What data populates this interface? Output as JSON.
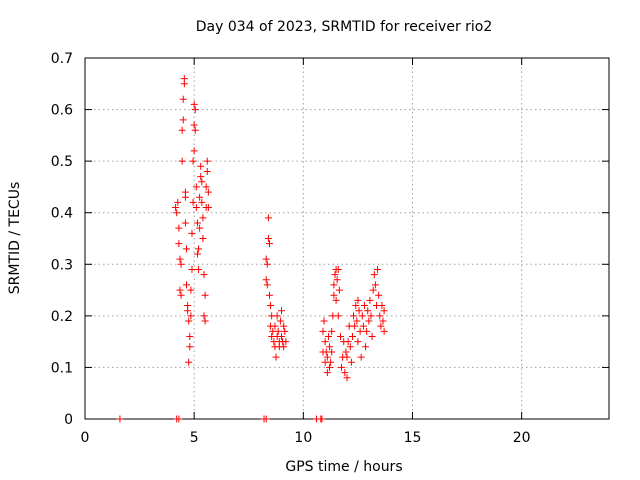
{
  "chart_data": {
    "type": "scatter",
    "title": "Day 034 of 2023, SRMTID for receiver rio2",
    "xlabel": "GPS time / hours",
    "ylabel": "SRMTID / TECUs",
    "xlim": [
      0,
      24
    ],
    "ylim": [
      0,
      0.7
    ],
    "x_ticks": [
      0,
      5,
      10,
      15,
      20
    ],
    "y_ticks": [
      0,
      0.1,
      0.2,
      0.3,
      0.4,
      0.5,
      0.6,
      0.7
    ],
    "x_tick_labels": [
      "0",
      "5",
      "10",
      "15",
      "20"
    ],
    "y_tick_labels": [
      "0",
      "0.1",
      "0.2",
      "0.3",
      "0.4",
      "0.5",
      "0.6",
      "0.7"
    ],
    "grid": true,
    "marker": "plus",
    "series": [
      {
        "name": "SRMTID",
        "color": "#ff0000",
        "points": [
          [
            1.6,
            0.0
          ],
          [
            4.2,
            0.0
          ],
          [
            4.3,
            0.0
          ],
          [
            8.2,
            0.0
          ],
          [
            8.3,
            0.0
          ],
          [
            10.6,
            0.0
          ],
          [
            10.8,
            0.0
          ],
          [
            10.85,
            0.0
          ],
          [
            4.15,
            0.41
          ],
          [
            4.2,
            0.4
          ],
          [
            4.25,
            0.42
          ],
          [
            4.3,
            0.37
          ],
          [
            4.3,
            0.34
          ],
          [
            4.35,
            0.31
          ],
          [
            4.35,
            0.25
          ],
          [
            4.4,
            0.24
          ],
          [
            4.4,
            0.3
          ],
          [
            4.45,
            0.5
          ],
          [
            4.45,
            0.56
          ],
          [
            4.5,
            0.58
          ],
          [
            4.5,
            0.62
          ],
          [
            4.55,
            0.65
          ],
          [
            4.55,
            0.66
          ],
          [
            4.6,
            0.44
          ],
          [
            4.6,
            0.43
          ],
          [
            4.6,
            0.38
          ],
          [
            4.65,
            0.33
          ],
          [
            4.65,
            0.26
          ],
          [
            4.7,
            0.22
          ],
          [
            4.7,
            0.21
          ],
          [
            4.75,
            0.19
          ],
          [
            4.75,
            0.11
          ],
          [
            4.8,
            0.14
          ],
          [
            4.8,
            0.16
          ],
          [
            4.85,
            0.2
          ],
          [
            4.85,
            0.25
          ],
          [
            4.9,
            0.29
          ],
          [
            4.9,
            0.36
          ],
          [
            4.95,
            0.42
          ],
          [
            4.95,
            0.5
          ],
          [
            5.0,
            0.52
          ],
          [
            5.0,
            0.57
          ],
          [
            5.0,
            0.61
          ],
          [
            5.05,
            0.6
          ],
          [
            5.05,
            0.56
          ],
          [
            5.1,
            0.45
          ],
          [
            5.1,
            0.41
          ],
          [
            5.15,
            0.38
          ],
          [
            5.15,
            0.32
          ],
          [
            5.2,
            0.29
          ],
          [
            5.2,
            0.33
          ],
          [
            5.25,
            0.37
          ],
          [
            5.25,
            0.43
          ],
          [
            5.3,
            0.47
          ],
          [
            5.3,
            0.49
          ],
          [
            5.35,
            0.46
          ],
          [
            5.35,
            0.42
          ],
          [
            5.4,
            0.39
          ],
          [
            5.4,
            0.35
          ],
          [
            5.45,
            0.28
          ],
          [
            5.45,
            0.2
          ],
          [
            5.5,
            0.19
          ],
          [
            5.5,
            0.24
          ],
          [
            5.55,
            0.41
          ],
          [
            5.55,
            0.45
          ],
          [
            5.6,
            0.48
          ],
          [
            5.6,
            0.5
          ],
          [
            5.65,
            0.44
          ],
          [
            5.65,
            0.41
          ],
          [
            8.3,
            0.31
          ],
          [
            8.3,
            0.27
          ],
          [
            8.35,
            0.26
          ],
          [
            8.35,
            0.3
          ],
          [
            8.4,
            0.35
          ],
          [
            8.4,
            0.39
          ],
          [
            8.45,
            0.34
          ],
          [
            8.45,
            0.24
          ],
          [
            8.5,
            0.22
          ],
          [
            8.5,
            0.18
          ],
          [
            8.55,
            0.16
          ],
          [
            8.55,
            0.2
          ],
          [
            8.6,
            0.17
          ],
          [
            8.65,
            0.15
          ],
          [
            8.7,
            0.14
          ],
          [
            8.7,
            0.18
          ],
          [
            8.75,
            0.12
          ],
          [
            8.8,
            0.16
          ],
          [
            8.8,
            0.2
          ],
          [
            8.85,
            0.17
          ],
          [
            8.9,
            0.15
          ],
          [
            8.9,
            0.14
          ],
          [
            8.95,
            0.19
          ],
          [
            9.0,
            0.21
          ],
          [
            9.0,
            0.16
          ],
          [
            9.05,
            0.15
          ],
          [
            9.1,
            0.18
          ],
          [
            9.1,
            0.14
          ],
          [
            9.15,
            0.17
          ],
          [
            9.2,
            0.15
          ],
          [
            10.9,
            0.17
          ],
          [
            10.9,
            0.13
          ],
          [
            10.95,
            0.19
          ],
          [
            11.0,
            0.11
          ],
          [
            11.0,
            0.15
          ],
          [
            11.05,
            0.13
          ],
          [
            11.1,
            0.09
          ],
          [
            11.1,
            0.12
          ],
          [
            11.15,
            0.16
          ],
          [
            11.2,
            0.1
          ],
          [
            11.2,
            0.14
          ],
          [
            11.25,
            0.11
          ],
          [
            11.3,
            0.13
          ],
          [
            11.3,
            0.17
          ],
          [
            11.35,
            0.2
          ],
          [
            11.4,
            0.24
          ],
          [
            11.4,
            0.26
          ],
          [
            11.45,
            0.28
          ],
          [
            11.5,
            0.29
          ],
          [
            11.5,
            0.23
          ],
          [
            11.55,
            0.27
          ],
          [
            11.6,
            0.29
          ],
          [
            11.6,
            0.2
          ],
          [
            11.65,
            0.25
          ],
          [
            11.7,
            0.16
          ],
          [
            11.75,
            0.1
          ],
          [
            11.8,
            0.12
          ],
          [
            11.85,
            0.15
          ],
          [
            11.9,
            0.09
          ],
          [
            11.95,
            0.13
          ],
          [
            12.0,
            0.08
          ],
          [
            12.0,
            0.12
          ],
          [
            12.05,
            0.15
          ],
          [
            12.1,
            0.18
          ],
          [
            12.15,
            0.14
          ],
          [
            12.2,
            0.11
          ],
          [
            12.25,
            0.16
          ],
          [
            12.3,
            0.2
          ],
          [
            12.35,
            0.18
          ],
          [
            12.4,
            0.22
          ],
          [
            12.45,
            0.19
          ],
          [
            12.5,
            0.15
          ],
          [
            12.5,
            0.23
          ],
          [
            12.55,
            0.21
          ],
          [
            12.6,
            0.17
          ],
          [
            12.65,
            0.12
          ],
          [
            12.7,
            0.2
          ],
          [
            12.75,
            0.18
          ],
          [
            12.8,
            0.22
          ],
          [
            12.85,
            0.14
          ],
          [
            12.9,
            0.17
          ],
          [
            12.95,
            0.21
          ],
          [
            13.0,
            0.19
          ],
          [
            13.05,
            0.23
          ],
          [
            13.1,
            0.2
          ],
          [
            13.15,
            0.16
          ],
          [
            13.2,
            0.25
          ],
          [
            13.25,
            0.28
          ],
          [
            13.3,
            0.26
          ],
          [
            13.35,
            0.22
          ],
          [
            13.4,
            0.29
          ],
          [
            13.45,
            0.24
          ],
          [
            13.5,
            0.2
          ],
          [
            13.55,
            0.18
          ],
          [
            13.6,
            0.22
          ],
          [
            13.65,
            0.19
          ],
          [
            13.7,
            0.17
          ],
          [
            13.7,
            0.21
          ]
        ]
      }
    ]
  }
}
